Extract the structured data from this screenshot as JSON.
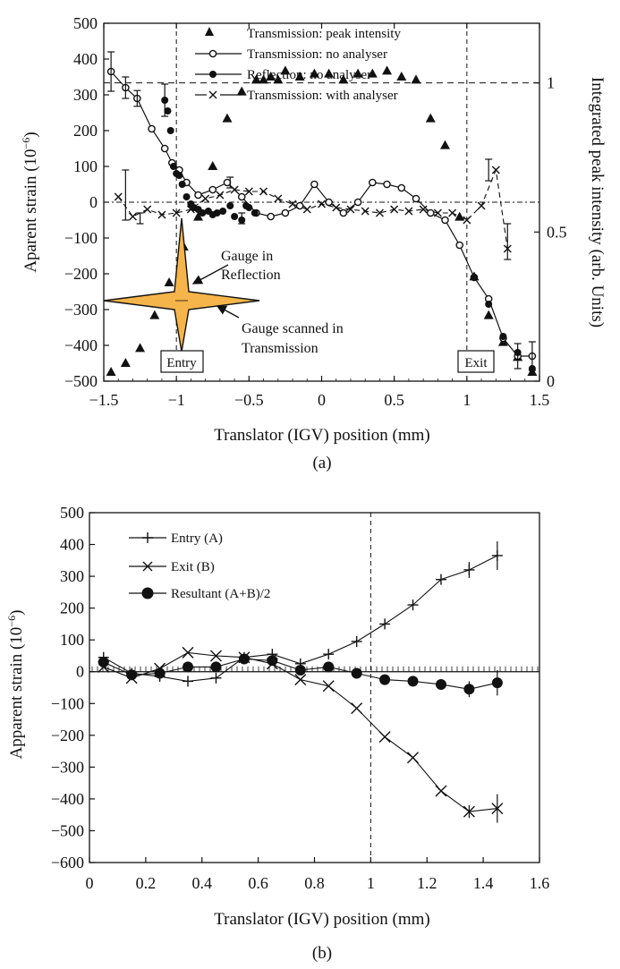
{
  "chart_data": [
    {
      "panel_label": "(a)",
      "type": "scatter",
      "xlabel": "Translator (IGV) position (mm)",
      "ylabel": "Aparent strain (10",
      "ylabel_sup": "−6",
      "ylabel_close": ")",
      "y2label": "Integrated peak intensity (arb. Units)",
      "xlim": [
        -1.5,
        1.5
      ],
      "ylim": [
        -500,
        500
      ],
      "y2lim": [
        0,
        1.2
      ],
      "xticks": [
        "−1.5",
        "−1",
        "−0.5",
        "0",
        "0.5",
        "1",
        "1.5"
      ],
      "yticks": [
        "500",
        "400",
        "300",
        "200",
        "100",
        "0",
        "−100",
        "−200",
        "−300",
        "−400",
        "−500"
      ],
      "y2ticks": [
        "1",
        "0.5",
        "0"
      ],
      "legend": [
        "Transmission: peak intensity",
        "Transmission: no analyser",
        "Reflection: no analyser",
        "Transmission: with analyser"
      ],
      "annotations": [
        "Gauge in",
        "Reflection",
        "Gauge scanned in",
        "Transmission",
        "Entry",
        "Exit"
      ],
      "series": [
        {
          "name": "Transmission: peak intensity",
          "axis": "right",
          "marker": "triangle",
          "x": [
            -1.45,
            -1.35,
            -1.25,
            -1.15,
            -1.05,
            -0.95,
            -0.85,
            -0.75,
            -0.65,
            -0.55,
            -0.45,
            -0.4,
            -0.35,
            -0.3,
            -0.25,
            -0.15,
            -0.05,
            0.05,
            0.15,
            0.25,
            0.35,
            0.45,
            0.55,
            0.65,
            0.75,
            0.85,
            0.95,
            1.05,
            1.15,
            1.25,
            1.35,
            1.45
          ],
          "y": [
            0.03,
            0.06,
            0.11,
            0.22,
            0.33,
            0.45,
            0.55,
            0.72,
            0.88,
            0.97,
            1.01,
            1.01,
            1.02,
            1.01,
            1.04,
            1.02,
            1.03,
            1.03,
            1.01,
            1.03,
            1.03,
            1.04,
            1.02,
            1.01,
            0.88,
            0.79,
            0.55,
            0.35,
            0.22,
            0.13,
            0.08,
            0.03
          ]
        },
        {
          "name": "Transmission: no analyser",
          "marker": "open-circle",
          "x": [
            -1.45,
            -1.35,
            -1.27,
            -1.17,
            -1.08,
            -1.03,
            -0.98,
            -0.93,
            -0.85,
            -0.75,
            -0.65,
            -0.55,
            -0.45,
            -0.35,
            -0.25,
            -0.15,
            -0.05,
            0.05,
            0.15,
            0.25,
            0.35,
            0.45,
            0.55,
            0.65,
            0.75,
            0.85,
            0.95,
            1.05,
            1.15,
            1.25,
            1.35,
            1.45
          ],
          "y": [
            365,
            320,
            290,
            205,
            150,
            110,
            90,
            55,
            20,
            35,
            55,
            15,
            -30,
            -40,
            -30,
            -10,
            50,
            0,
            -30,
            0,
            55,
            50,
            40,
            10,
            -30,
            -50,
            -120,
            -210,
            -270,
            -380,
            -430,
            -430
          ]
        },
        {
          "name": "Reflection: no analyser",
          "marker": "filled-circle",
          "x": [
            -1.08,
            -1.06,
            -1.04,
            -1.02,
            -1.0,
            -0.98,
            -0.96,
            -0.93,
            -0.9,
            -0.88,
            -0.85,
            -0.82,
            -0.78,
            -0.75,
            -0.72,
            -0.68,
            -0.63,
            -0.6,
            -0.55,
            -0.52,
            -0.5,
            -0.46,
            1.05,
            1.15,
            1.25,
            1.35,
            1.45
          ],
          "y": [
            285,
            255,
            200,
            100,
            80,
            75,
            50,
            15,
            -5,
            -15,
            -20,
            -30,
            -25,
            -35,
            -30,
            -25,
            -10,
            -40,
            -50,
            -10,
            -15,
            -30,
            -210,
            -285,
            -375,
            -420,
            -465
          ]
        },
        {
          "name": "Transmission: with analyser",
          "marker": "cross",
          "x": [
            -1.4,
            -1.3,
            -1.2,
            -1.1,
            -1.0,
            -0.9,
            -0.8,
            -0.7,
            -0.6,
            -0.5,
            -0.4,
            -0.3,
            -0.2,
            -0.1,
            0.0,
            0.1,
            0.2,
            0.3,
            0.4,
            0.5,
            0.6,
            0.7,
            0.8,
            0.9,
            1.0,
            1.1,
            1.2,
            1.28
          ],
          "y": [
            15,
            -40,
            -20,
            -35,
            -30,
            -20,
            10,
            20,
            35,
            30,
            30,
            10,
            -5,
            -20,
            -5,
            -15,
            -20,
            -25,
            -30,
            -20,
            -25,
            -20,
            -30,
            -30,
            -50,
            -10,
            90,
            -130
          ]
        }
      ]
    },
    {
      "panel_label": "(b)",
      "type": "line",
      "xlabel": "Translator (IGV) position (mm)",
      "ylabel": "Apparent strain (10",
      "ylabel_sup": "−6",
      "ylabel_close": ")",
      "xlim": [
        0,
        1.6
      ],
      "ylim": [
        -600,
        500
      ],
      "xticks": [
        "0",
        "0.2",
        "0.4",
        "0.6",
        "0.8",
        "1",
        "1.2",
        "1.4",
        "1.6"
      ],
      "yticks": [
        "500",
        "400",
        "300",
        "200",
        "100",
        "0",
        "−100",
        "−200",
        "−300",
        "−400",
        "−500",
        "−600"
      ],
      "legend": [
        "Entry (A)",
        "Exit (B)",
        "Resultant (A+B)/2"
      ],
      "series": [
        {
          "name": "Entry (A)",
          "marker": "plus",
          "x": [
            0.05,
            0.15,
            0.25,
            0.35,
            0.45,
            0.55,
            0.65,
            0.75,
            0.85,
            0.95,
            1.05,
            1.15,
            1.25,
            1.35,
            1.45
          ],
          "y": [
            45,
            -5,
            -15,
            -30,
            -20,
            45,
            55,
            25,
            55,
            95,
            150,
            210,
            290,
            320,
            365
          ]
        },
        {
          "name": "Exit (B)",
          "marker": "x",
          "x": [
            0.05,
            0.15,
            0.25,
            0.35,
            0.45,
            0.55,
            0.65,
            0.75,
            0.85,
            0.95,
            1.05,
            1.15,
            1.25,
            1.35,
            1.45
          ],
          "y": [
            15,
            -20,
            10,
            60,
            50,
            45,
            25,
            -25,
            -45,
            -115,
            -205,
            -270,
            -375,
            -440,
            -430
          ]
        },
        {
          "name": "Resultant (A+B)/2",
          "marker": "filled-circle",
          "x": [
            0.05,
            0.15,
            0.25,
            0.35,
            0.45,
            0.55,
            0.65,
            0.75,
            0.85,
            0.95,
            1.05,
            1.15,
            1.25,
            1.35,
            1.45
          ],
          "y": [
            30,
            -10,
            -5,
            15,
            15,
            40,
            35,
            5,
            15,
            -5,
            -25,
            -30,
            -40,
            -55,
            -35
          ]
        }
      ]
    }
  ],
  "entry_label": "Entry",
  "exit_label": "Exit",
  "colors": {
    "gauge_fill": "#f5b54a",
    "ink": "#111111"
  }
}
